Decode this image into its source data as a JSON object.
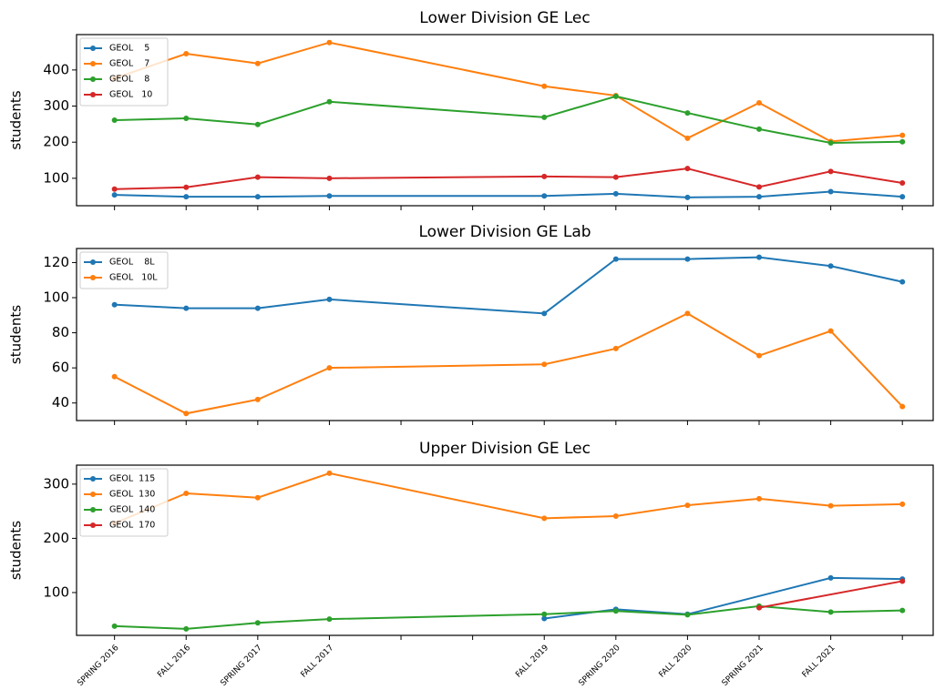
{
  "chart_data": [
    {
      "type": "line",
      "title": "Lower Division GE Lec",
      "y_label": "students",
      "xlim": [
        -0.53,
        11.43
      ],
      "ylim": [
        24,
        498
      ],
      "yticks": [
        100,
        200,
        300,
        400
      ],
      "legend": "upper left",
      "series": [
        {
          "name": "GEOL    5",
          "color": "#1f77b4",
          "x": [
            0,
            1,
            2,
            3,
            6,
            7,
            8,
            9,
            10,
            11
          ],
          "values": [
            54,
            49,
            49,
            51,
            51,
            57,
            47,
            49,
            63,
            49
          ]
        },
        {
          "name": "GEOL    7",
          "color": "#ff7f0e",
          "x": [
            0,
            1,
            2,
            3,
            6,
            7,
            8,
            9,
            10,
            11
          ],
          "values": [
            377,
            445,
            418,
            476,
            355,
            329,
            211,
            309,
            202,
            219
          ]
        },
        {
          "name": "GEOL    8",
          "color": "#2ca02c",
          "x": [
            0,
            1,
            2,
            3,
            6,
            7,
            8,
            9,
            10,
            11
          ],
          "values": [
            261,
            266,
            249,
            312,
            269,
            327,
            281,
            236,
            198,
            201
          ]
        },
        {
          "name": "GEOL   10",
          "color": "#d62728",
          "x": [
            0,
            1,
            2,
            3,
            6,
            7,
            8,
            9,
            10,
            11
          ],
          "values": [
            70,
            75,
            103,
            100,
            105,
            103,
            127,
            76,
            119,
            87
          ]
        }
      ]
    },
    {
      "type": "line",
      "title": "Lower Division GE Lab",
      "y_label": "students",
      "xlim": [
        -0.53,
        11.43
      ],
      "ylim": [
        30,
        128
      ],
      "yticks": [
        40,
        60,
        80,
        100,
        120
      ],
      "legend": "upper left",
      "series": [
        {
          "name": "GEOL    8L",
          "color": "#1f77b4",
          "x": [
            0,
            1,
            2,
            3,
            6,
            7,
            8,
            9,
            10,
            11
          ],
          "values": [
            96,
            94,
            94,
            99,
            91,
            122,
            122,
            123,
            118,
            109
          ]
        },
        {
          "name": "GEOL   10L",
          "color": "#ff7f0e",
          "x": [
            0,
            1,
            2,
            3,
            6,
            7,
            8,
            9,
            10,
            11
          ],
          "values": [
            55,
            34,
            42,
            60,
            62,
            71,
            91,
            67,
            81,
            38
          ]
        }
      ]
    },
    {
      "type": "line",
      "title": "Upper Division GE Lec",
      "y_label": "students",
      "xlim": [
        -0.53,
        11.43
      ],
      "ylim": [
        21,
        335
      ],
      "yticks": [
        100,
        200,
        300
      ],
      "legend": "upper left",
      "xticks": [
        {
          "value": 0,
          "label": "SPRING 2016"
        },
        {
          "value": 1,
          "label": "FALL 2016"
        },
        {
          "value": 2,
          "label": "SPRING 2017"
        },
        {
          "value": 3,
          "label": "FALL 2017"
        },
        {
          "value": 4,
          "label": null
        },
        {
          "value": 5,
          "label": null
        },
        {
          "value": 6,
          "label": "FALL 2019"
        },
        {
          "value": 7,
          "label": "SPRING 2020"
        },
        {
          "value": 8,
          "label": "FALL 2020"
        },
        {
          "value": 9,
          "label": "SPRING 2021"
        },
        {
          "value": 10,
          "label": "FALL 2021"
        },
        {
          "value": 11,
          "label": null
        }
      ],
      "series": [
        {
          "name": "GEOL  115",
          "color": "#1f77b4",
          "x": [
            6,
            7,
            8,
            10,
            11
          ],
          "values": [
            52,
            69,
            60,
            127,
            125
          ]
        },
        {
          "name": "GEOL  130",
          "color": "#ff7f0e",
          "x": [
            0,
            1,
            2,
            3,
            6,
            7,
            8,
            9,
            10,
            11
          ],
          "values": [
            228,
            283,
            275,
            320,
            237,
            241,
            261,
            273,
            260,
            263
          ]
        },
        {
          "name": "GEOL  140",
          "color": "#2ca02c",
          "x": [
            0,
            1,
            2,
            3,
            6,
            7,
            8,
            9,
            10,
            11
          ],
          "values": [
            38,
            33,
            44,
            51,
            60,
            66,
            59,
            75,
            64,
            67
          ]
        },
        {
          "name": "GEOL  170",
          "color": "#d62728",
          "x": [
            9,
            11
          ],
          "values": [
            72,
            121
          ]
        }
      ]
    }
  ]
}
